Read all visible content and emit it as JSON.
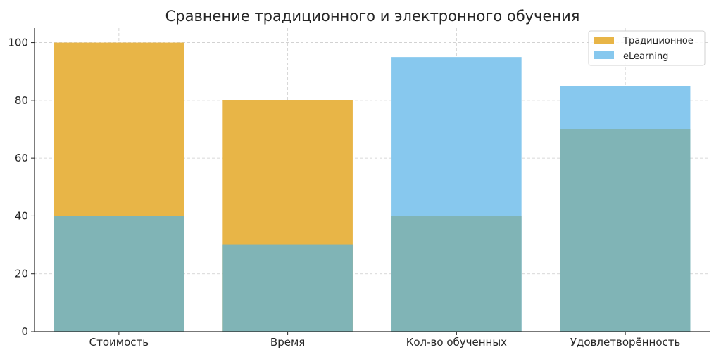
{
  "chart_data": {
    "type": "bar",
    "title": "Сравнение традиционного и электронного обучения",
    "xlabel": "",
    "ylabel": "",
    "categories": [
      "Стоимость",
      "Время",
      "Кол-во обученных",
      "Удовлетворённость"
    ],
    "series": [
      {
        "name": "Традиционное",
        "values": [
          100,
          80,
          40,
          70
        ],
        "color": "#E8B547"
      },
      {
        "name": "eLearning",
        "values": [
          40,
          30,
          95,
          85
        ],
        "color": "#87C8EE"
      }
    ],
    "overlap_color": "#80B4B6",
    "ylim": [
      0,
      105
    ],
    "yticks": [
      "0",
      "20",
      "40",
      "60",
      "80",
      "100"
    ],
    "grid": true,
    "legend_position": "top-right",
    "overlay": true
  }
}
